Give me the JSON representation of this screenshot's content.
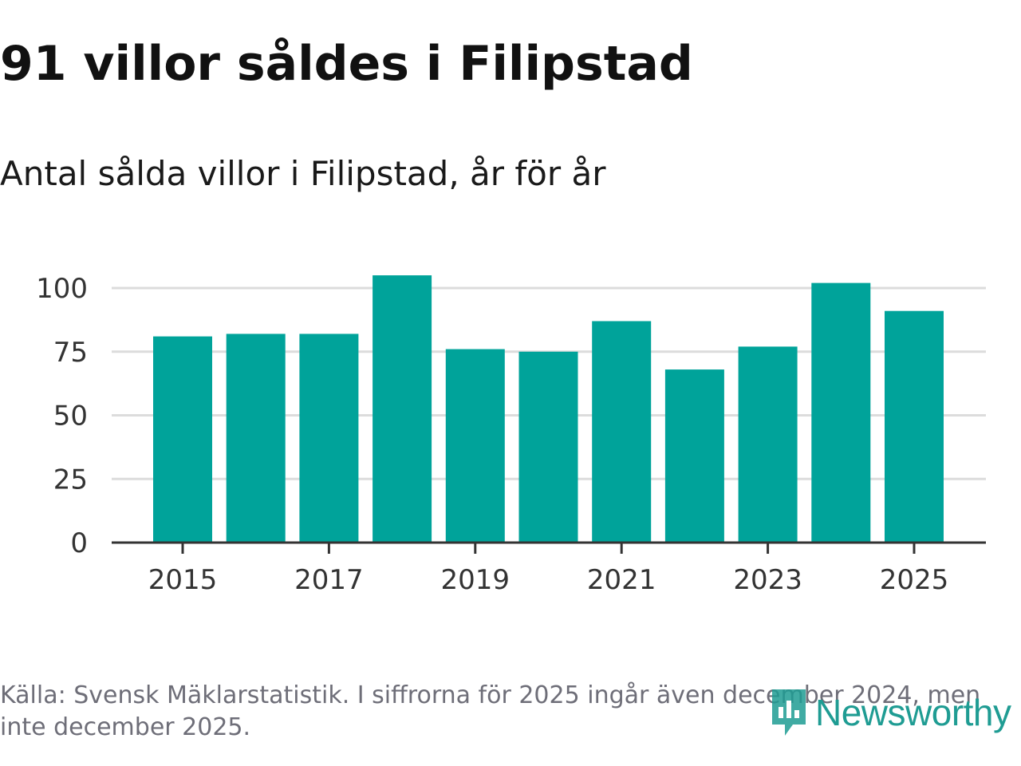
{
  "title": "91 villor såldes i Filipstad",
  "subtitle": "Antal sålda villor i Filipstad, år för år",
  "source": "Källa: Svensk Mäklarstatistik. I siffrorna för 2025 ingår även december 2024, men inte december 2025.",
  "logo": {
    "text": "Newsworthy"
  },
  "colors": {
    "bar": "#00a39a",
    "grid": "#dcdcdc",
    "axis": "#333333",
    "text": "#333333",
    "logo": "#1f9c93"
  },
  "chart_data": {
    "type": "bar",
    "title": "Antal sålda villor i Filipstad, år för år",
    "xlabel": "",
    "ylabel": "",
    "categories": [
      2015,
      2016,
      2017,
      2018,
      2019,
      2020,
      2021,
      2022,
      2023,
      2024,
      2025
    ],
    "values": [
      81,
      82,
      82,
      105,
      76,
      75,
      87,
      68,
      77,
      102,
      91
    ],
    "ylim": [
      0,
      100
    ],
    "yticks": [
      0,
      25,
      50,
      75,
      100
    ],
    "xticks": [
      2015,
      2017,
      2019,
      2021,
      2023,
      2025
    ],
    "grid": true
  }
}
